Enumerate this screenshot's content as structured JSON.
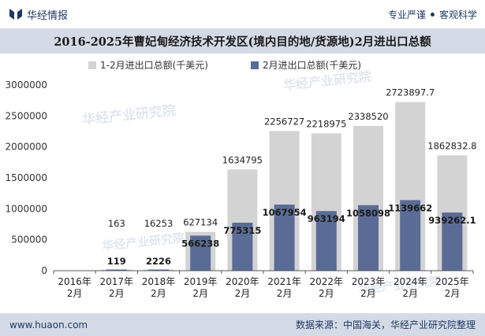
{
  "header": {
    "brand": "华经情报",
    "tag1": "专业严谨",
    "tag2": "客观科学"
  },
  "footer": {
    "url": "www.huaon.com",
    "source": "数据来源：中国海关，华经产业研究院整理"
  },
  "watermark": "华经产业研究院",
  "colors": {
    "series_total": "#d3d3d3",
    "series_feb": "#5a6b95",
    "bar_title": "#d5dbe6"
  },
  "chart_data": {
    "type": "bar",
    "title": "2016-2025年曹妃甸经济技术开发区(境内目的地/货源地)2月进出口总额",
    "categories": [
      "2016年\n2月",
      "2017年\n2月",
      "2018年\n2月",
      "2019年\n2月",
      "2020年\n2月",
      "2021年\n2月",
      "2022年\n2月",
      "2023年\n2月",
      "2024年\n2月",
      "2025年\n2月"
    ],
    "series": [
      {
        "name": "1-2月进出口总额(千美元)",
        "values": [
          null,
          163,
          16253,
          627134,
          1634795,
          2256727,
          2218975,
          2338520,
          2723897.7,
          1862832.8
        ],
        "labels": [
          "",
          "163",
          "16253",
          "627134",
          "1634795",
          "2256727",
          "2218975",
          "2338520",
          "2723897.7",
          "1862832.8"
        ]
      },
      {
        "name": "2月进出口总额(千美元)",
        "values": [
          null,
          119,
          2226,
          566238,
          775315,
          1067954,
          963194,
          1058098,
          1139662,
          939262.1
        ],
        "labels": [
          "",
          "119",
          "2226",
          "566238",
          "775315",
          "1067954",
          "963194",
          "1058098",
          "1139662",
          "939262.1"
        ]
      }
    ],
    "yticks": [
      "0",
      "500000",
      "1000000",
      "1500000",
      "2000000",
      "2500000",
      "3000000"
    ],
    "ylim": [
      0,
      3000000
    ],
    "legend_position": "top",
    "grid": false
  }
}
